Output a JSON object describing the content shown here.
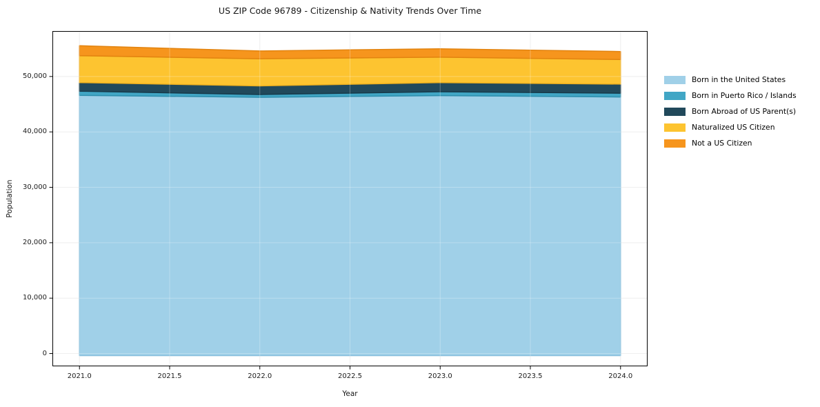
{
  "figure": {
    "title": "US ZIP Code 96789 - Citizenship & Nativity Trends Over Time",
    "xlabel": "Year",
    "ylabel": "Population"
  },
  "chart_data": {
    "type": "area",
    "stacked": true,
    "title": "US ZIP Code 96789 - Citizenship & Nativity Trends Over Time",
    "xlabel": "Year",
    "ylabel": "Population",
    "x": [
      2021,
      2022,
      2023,
      2024
    ],
    "series": [
      {
        "name": "Born in the United States",
        "color": "#A0D0E8",
        "edge_color": "#86BEDC",
        "values": [
          46600,
          46250,
          46550,
          46300
        ]
      },
      {
        "name": "Born in Puerto Rico / Islands",
        "color": "#41A6C5",
        "edge_color": "#2F8FAD",
        "values": [
          750,
          500,
          700,
          680
        ]
      },
      {
        "name": "Born Abroad of US Parent(s)",
        "color": "#21495B",
        "edge_color": "#173A4A",
        "values": [
          1550,
          1550,
          1650,
          1650
        ]
      },
      {
        "name": "Naturalized US Citizen",
        "color": "#FDC430",
        "edge_color": "#EFB11F",
        "values": [
          4850,
          4900,
          4580,
          4440
        ]
      },
      {
        "name": "Not a US Citizen",
        "color": "#F6951D",
        "edge_color": "#E2830F",
        "values": [
          1800,
          1400,
          1520,
          1430
        ]
      }
    ],
    "xlim": [
      2020.85,
      2024.15
    ],
    "ylim": [
      -2300,
      58200
    ],
    "xticks": [
      2021.0,
      2021.5,
      2022.0,
      2022.5,
      2023.0,
      2023.5,
      2024.0
    ],
    "xtick_labels": [
      "2021.0",
      "2021.5",
      "2022.0",
      "2022.5",
      "2023.0",
      "2023.5",
      "2024.0"
    ],
    "yticks": [
      0,
      10000,
      20000,
      30000,
      40000,
      50000
    ],
    "ytick_labels": [
      "0",
      "10,000",
      "20,000",
      "30,000",
      "40,000",
      "50,000"
    ],
    "grid": true,
    "legend_position": "right-outside",
    "spine_color": "#000000",
    "grid_color": "#E9E9E9"
  }
}
